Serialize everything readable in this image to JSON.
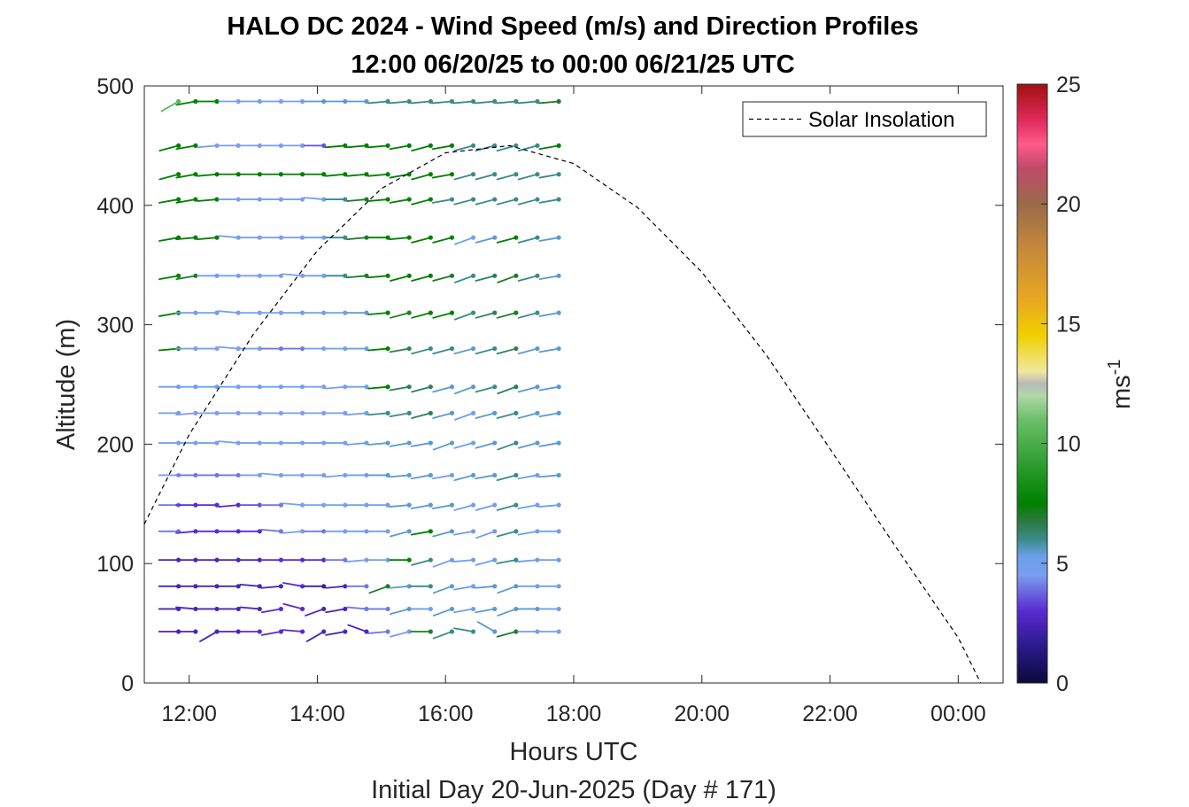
{
  "chart_data": {
    "type": "wind-barb-profile",
    "title": "HALO DC 2024 - Wind Speed (m/s) and Direction Profiles",
    "subtitle": "12:00 06/20/25 to 00:00 06/21/25  UTC",
    "xlabel": "Hours UTC",
    "xlabel2": "Initial Day 20-Jun-2025 (Day # 171)",
    "ylabel": "Altitude (m)",
    "xlim": [
      11.3,
      24.7
    ],
    "ylim": [
      0,
      500
    ],
    "x_ticks": [
      12,
      14,
      16,
      18,
      20,
      22,
      24
    ],
    "x_tick_labels": [
      "12:00",
      "14:00",
      "16:00",
      "18:00",
      "20:00",
      "22:00",
      "00:00"
    ],
    "y_ticks": [
      0,
      100,
      200,
      300,
      400,
      500
    ],
    "y_tick_labels": [
      "0",
      "100",
      "200",
      "300",
      "400",
      "500"
    ],
    "colorbar": {
      "label": "ms",
      "label_exponent": "-1",
      "range": [
        0,
        25
      ],
      "ticks": [
        0,
        5,
        10,
        15,
        20,
        25
      ],
      "tick_labels": [
        "0",
        "5",
        "10",
        "15",
        "20",
        "25"
      ],
      "stops": [
        {
          "v": 0,
          "color": "#0a0a3a"
        },
        {
          "v": 1.5,
          "color": "#2a1a8a"
        },
        {
          "v": 3,
          "color": "#5a2ad0"
        },
        {
          "v": 4.5,
          "color": "#7a9ef0"
        },
        {
          "v": 5.3,
          "color": "#6aa0e8"
        },
        {
          "v": 6,
          "color": "#3a8a8a"
        },
        {
          "v": 6.8,
          "color": "#2a7a3a"
        },
        {
          "v": 7.5,
          "color": "#008000"
        },
        {
          "v": 9,
          "color": "#2a9a2a"
        },
        {
          "v": 11,
          "color": "#6ac06a"
        },
        {
          "v": 12,
          "color": "#b0d8a8"
        },
        {
          "v": 12.5,
          "color": "#b8b8b8"
        },
        {
          "v": 13,
          "color": "#f0e8a0"
        },
        {
          "v": 14.5,
          "color": "#f0d000"
        },
        {
          "v": 16,
          "color": "#e8a820"
        },
        {
          "v": 18,
          "color": "#c88a3a"
        },
        {
          "v": 20,
          "color": "#9a6a4a"
        },
        {
          "v": 21.5,
          "color": "#c04a6a"
        },
        {
          "v": 22.5,
          "color": "#ff5a8a"
        },
        {
          "v": 23.5,
          "color": "#e02a5a"
        },
        {
          "v": 25,
          "color": "#a01010"
        }
      ]
    },
    "legend": {
      "position": "top-right",
      "entries": [
        "Solar Insolation"
      ]
    },
    "solar_insolation": {
      "style": "dashed",
      "color": "#000000",
      "x": [
        11.3,
        12.0,
        13.0,
        14.0,
        15.0,
        16.0,
        17.0,
        18.0,
        19.0,
        20.0,
        21.0,
        22.0,
        23.0,
        24.0,
        24.35
      ],
      "y": [
        133,
        208,
        292,
        362,
        414,
        444,
        450,
        435,
        398,
        344,
        275,
        196,
        116,
        38,
        0
      ]
    },
    "wind": {
      "times": [
        11.833,
        12.1,
        12.433,
        12.767,
        13.1,
        13.433,
        13.767,
        14.1,
        14.433,
        14.767,
        15.1,
        15.433,
        15.767,
        16.1,
        16.433,
        16.767,
        17.1,
        17.433,
        17.767
      ],
      "altitudes": [
        43,
        62,
        81,
        103,
        127,
        149,
        174,
        201,
        226,
        248,
        280,
        310,
        341,
        373,
        405,
        426,
        450,
        487
      ],
      "speed_rows": [
        [
          2.5,
          2.5,
          2.5,
          2.5,
          3.0,
          3.0,
          3.0,
          2.5,
          2.5,
          2.5,
          4.0,
          5.0,
          7.0,
          6.0,
          6.0,
          5.5,
          7.0,
          5.0,
          4.5
        ],
        [
          2.5,
          2.5,
          2.5,
          2.5,
          2.5,
          3.0,
          3.0,
          2.5,
          2.5,
          4.0,
          4.0,
          5.5,
          5.0,
          5.5,
          5.0,
          5.5,
          5.5,
          5.5,
          5.0
        ],
        [
          2.5,
          2.5,
          2.5,
          2.5,
          2.5,
          2.5,
          3.0,
          2.0,
          2.5,
          4.0,
          7.0,
          5.5,
          6.0,
          5.5,
          5.0,
          5.5,
          5.5,
          5.0,
          5.0
        ],
        [
          2.5,
          2.5,
          2.5,
          2.5,
          2.5,
          3.0,
          3.0,
          3.0,
          4.0,
          4.5,
          5.0,
          7.5,
          6.0,
          5.0,
          5.0,
          5.0,
          6.0,
          5.0,
          5.0
        ],
        [
          4.0,
          3.0,
          3.0,
          3.0,
          3.0,
          4.0,
          4.5,
          4.0,
          4.5,
          5.0,
          5.0,
          5.5,
          7.5,
          5.5,
          5.0,
          5.0,
          6.0,
          5.0,
          5.0
        ],
        [
          4.0,
          3.0,
          3.0,
          3.0,
          3.5,
          4.0,
          4.5,
          4.5,
          4.5,
          5.0,
          5.0,
          5.5,
          5.5,
          5.5,
          5.0,
          5.0,
          6.0,
          5.0,
          5.0
        ],
        [
          4.5,
          4.0,
          4.0,
          4.0,
          4.5,
          4.5,
          4.5,
          4.5,
          4.5,
          5.0,
          5.5,
          5.5,
          5.5,
          5.0,
          5.5,
          5.5,
          6.0,
          5.0,
          5.5
        ],
        [
          4.5,
          4.5,
          4.5,
          4.5,
          4.5,
          4.5,
          4.5,
          4.5,
          4.5,
          5.0,
          5.5,
          5.5,
          5.5,
          5.5,
          5.0,
          5.5,
          6.0,
          5.5,
          5.5
        ],
        [
          5.0,
          4.5,
          4.5,
          4.5,
          4.5,
          4.5,
          4.5,
          4.5,
          4.5,
          5.0,
          6.0,
          6.0,
          6.5,
          5.5,
          5.0,
          5.5,
          6.0,
          5.5,
          5.5
        ],
        [
          5.0,
          5.0,
          5.0,
          5.0,
          5.0,
          5.0,
          5.0,
          4.5,
          4.5,
          5.0,
          7.5,
          6.5,
          6.5,
          5.5,
          5.5,
          6.0,
          6.5,
          5.5,
          5.5
        ],
        [
          7.5,
          4.5,
          4.5,
          4.5,
          4.5,
          4.0,
          4.0,
          4.5,
          4.5,
          5.0,
          7.5,
          6.5,
          6.0,
          6.0,
          5.5,
          6.0,
          6.5,
          5.5,
          5.5
        ],
        [
          7.5,
          5.0,
          5.0,
          4.5,
          4.5,
          4.5,
          5.0,
          5.0,
          5.0,
          5.5,
          7.5,
          7.0,
          7.5,
          7.5,
          6.0,
          6.5,
          7.0,
          6.0,
          5.5
        ],
        [
          7.5,
          7.0,
          5.0,
          4.5,
          4.5,
          4.5,
          4.5,
          5.0,
          6.0,
          7.0,
          7.5,
          7.5,
          7.5,
          7.0,
          6.0,
          6.5,
          7.0,
          6.0,
          5.5
        ],
        [
          7.5,
          7.5,
          7.5,
          5.0,
          4.5,
          4.5,
          4.5,
          5.0,
          6.0,
          7.0,
          7.5,
          7.5,
          7.5,
          7.5,
          5.0,
          5.5,
          7.5,
          6.0,
          5.5
        ],
        [
          7.5,
          7.5,
          7.5,
          4.5,
          4.5,
          4.5,
          4.5,
          5.0,
          6.0,
          7.0,
          7.5,
          7.5,
          7.5,
          6.0,
          6.0,
          6.0,
          6.0,
          6.0,
          6.0
        ],
        [
          7.5,
          7.5,
          7.5,
          7.5,
          7.5,
          7.5,
          7.5,
          7.5,
          7.5,
          7.5,
          7.5,
          7.5,
          7.5,
          7.5,
          6.0,
          6.0,
          6.0,
          6.0,
          6.0
        ],
        [
          7.5,
          7.5,
          4.5,
          4.5,
          4.5,
          4.5,
          4.5,
          3.5,
          7.5,
          7.5,
          7.5,
          7.5,
          7.5,
          7.5,
          6.0,
          6.0,
          6.0,
          6.0,
          7.5
        ],
        [
          10.5,
          7.5,
          7.5,
          4.5,
          5.0,
          4.5,
          4.5,
          5.5,
          5.5,
          5.5,
          6.0,
          6.0,
          6.0,
          6.0,
          6.0,
          6.0,
          6.0,
          6.0,
          7.0
        ]
      ],
      "direction_rows": [
        [
          270,
          270,
          240,
          270,
          270,
          260,
          275,
          240,
          260,
          290,
          265,
          255,
          270,
          250,
          280,
          300,
          255,
          270,
          270
        ],
        [
          270,
          275,
          270,
          270,
          275,
          260,
          285,
          250,
          260,
          275,
          270,
          255,
          270,
          250,
          260,
          260,
          250,
          270,
          270
        ],
        [
          270,
          270,
          270,
          270,
          275,
          265,
          280,
          270,
          265,
          270,
          250,
          265,
          270,
          250,
          260,
          265,
          250,
          270,
          270
        ],
        [
          270,
          270,
          270,
          270,
          270,
          270,
          270,
          270,
          270,
          265,
          270,
          270,
          255,
          250,
          265,
          255,
          260,
          265,
          270
        ],
        [
          270,
          265,
          270,
          270,
          270,
          275,
          265,
          270,
          270,
          270,
          270,
          255,
          260,
          255,
          260,
          250,
          255,
          260,
          270
        ],
        [
          270,
          270,
          270,
          265,
          270,
          270,
          275,
          270,
          270,
          270,
          270,
          265,
          260,
          260,
          255,
          255,
          255,
          260,
          265
        ],
        [
          270,
          270,
          270,
          270,
          270,
          275,
          270,
          270,
          265,
          270,
          270,
          265,
          260,
          260,
          255,
          260,
          255,
          260,
          265
        ],
        [
          270,
          270,
          270,
          275,
          270,
          270,
          270,
          270,
          270,
          265,
          265,
          260,
          260,
          250,
          255,
          255,
          250,
          255,
          260
        ],
        [
          270,
          265,
          270,
          270,
          270,
          270,
          270,
          270,
          270,
          265,
          265,
          260,
          255,
          255,
          250,
          255,
          255,
          255,
          260
        ],
        [
          270,
          270,
          270,
          270,
          270,
          270,
          270,
          270,
          265,
          270,
          265,
          260,
          255,
          255,
          250,
          255,
          250,
          255,
          260
        ],
        [
          265,
          270,
          270,
          275,
          270,
          270,
          270,
          270,
          270,
          270,
          265,
          260,
          255,
          255,
          255,
          255,
          255,
          255,
          260
        ],
        [
          260,
          270,
          270,
          275,
          270,
          270,
          270,
          270,
          270,
          270,
          265,
          255,
          255,
          255,
          250,
          255,
          255,
          255,
          260
        ],
        [
          260,
          260,
          270,
          270,
          270,
          270,
          275,
          270,
          270,
          265,
          265,
          255,
          255,
          255,
          250,
          255,
          250,
          255,
          260
        ],
        [
          260,
          265,
          265,
          275,
          270,
          270,
          270,
          270,
          270,
          265,
          270,
          265,
          255,
          255,
          250,
          255,
          255,
          255,
          260
        ],
        [
          260,
          260,
          265,
          270,
          270,
          270,
          270,
          275,
          270,
          265,
          265,
          260,
          255,
          260,
          255,
          255,
          255,
          255,
          260
        ],
        [
          255,
          260,
          265,
          270,
          270,
          270,
          270,
          270,
          265,
          265,
          265,
          260,
          255,
          260,
          255,
          255,
          255,
          255,
          260
        ],
        [
          255,
          260,
          265,
          270,
          270,
          270,
          270,
          270,
          265,
          265,
          265,
          260,
          255,
          260,
          255,
          255,
          255,
          255,
          260
        ],
        [
          240,
          260,
          270,
          270,
          270,
          270,
          270,
          270,
          270,
          270,
          265,
          265,
          265,
          265,
          265,
          265,
          265,
          265,
          265
        ]
      ]
    }
  }
}
